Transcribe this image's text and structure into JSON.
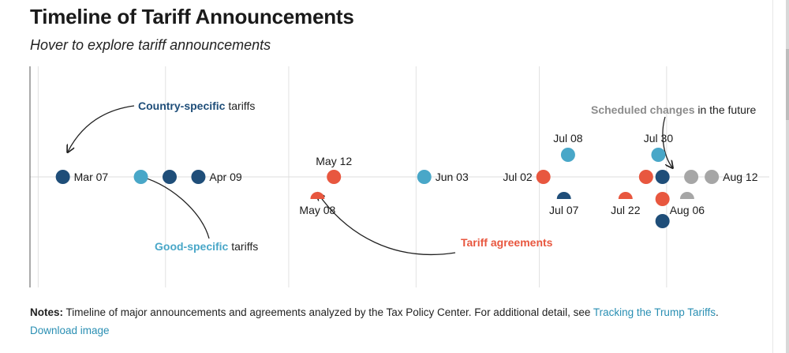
{
  "header": {
    "title": "Timeline of Tariff Announcements",
    "subtitle": "Hover to explore tariff announcements"
  },
  "colors": {
    "country": "#1f4e79",
    "good": "#49a7c8",
    "agreement": "#e8573f",
    "future": "#a6a6a6",
    "axis": "#555555",
    "grid": "#e2e2e2",
    "link": "#2a8fb3"
  },
  "chart_data": {
    "type": "scatter",
    "x_axis": "date",
    "x_range": [
      "2025-02-27",
      "2025-08-26"
    ],
    "gridlines": [
      "2025-03-01",
      "2025-04-01",
      "2025-05-01",
      "2025-06-01",
      "2025-07-01",
      "2025-08-01"
    ],
    "categories": {
      "country": "Country-specific",
      "good": "Good-specific",
      "agreement": "Tariff agreements",
      "future": "Scheduled changes"
    },
    "events": [
      {
        "date": "2025-03-07",
        "category": "country",
        "label": "Mar 07",
        "row": 0,
        "shape": "circle"
      },
      {
        "date": "2025-03-26",
        "category": "good",
        "label": "",
        "row": 0,
        "shape": "circle"
      },
      {
        "date": "2025-04-02",
        "category": "country",
        "label": "",
        "row": 0,
        "shape": "circle"
      },
      {
        "date": "2025-04-09",
        "category": "country",
        "label": "Apr 09",
        "row": 0,
        "shape": "circle"
      },
      {
        "date": "2025-05-08",
        "category": "agreement",
        "label": "May 08",
        "row": 1,
        "shape": "half"
      },
      {
        "date": "2025-05-12",
        "category": "agreement",
        "label": "May 12",
        "row": 0,
        "shape": "circle"
      },
      {
        "date": "2025-06-03",
        "category": "good",
        "label": "Jun 03",
        "row": 0,
        "shape": "circle"
      },
      {
        "date": "2025-07-02",
        "category": "agreement",
        "label": "Jul 02",
        "row": 0,
        "shape": "circle"
      },
      {
        "date": "2025-07-07",
        "category": "country",
        "label": "Jul 07",
        "row": 1,
        "shape": "half"
      },
      {
        "date": "2025-07-08",
        "category": "good",
        "label": "Jul 08",
        "row": -1,
        "shape": "circle"
      },
      {
        "date": "2025-07-22",
        "category": "agreement",
        "label": "Jul 22",
        "row": 1,
        "shape": "half"
      },
      {
        "date": "2025-07-27",
        "category": "agreement",
        "label": "",
        "row": 0,
        "shape": "circle"
      },
      {
        "date": "2025-07-30",
        "category": "good",
        "label": "Jul 30",
        "row": -1,
        "shape": "circle"
      },
      {
        "date": "2025-07-31",
        "category": "country",
        "label": "",
        "row": 0,
        "shape": "circle"
      },
      {
        "date": "2025-07-31",
        "category": "agreement",
        "label": "",
        "row": 1,
        "shape": "circle"
      },
      {
        "date": "2025-07-31",
        "category": "country",
        "label": "",
        "row": 2,
        "shape": "circle"
      },
      {
        "date": "2025-08-06",
        "category": "future",
        "label": "Aug 06",
        "row": 1,
        "shape": "half"
      },
      {
        "date": "2025-08-07",
        "category": "future",
        "label": "",
        "row": 0,
        "shape": "circle"
      },
      {
        "date": "2025-08-12",
        "category": "future",
        "label": "Aug 12",
        "row": 0,
        "shape": "circle"
      }
    ],
    "annotations": {
      "country": {
        "highlight": "Country-specific",
        "rest": " tariffs"
      },
      "good": {
        "highlight": "Good-specific",
        "rest": " tariffs"
      },
      "agreement": {
        "highlight": "Tariff agreements",
        "rest": ""
      },
      "future": {
        "highlight": "Scheduled changes",
        "rest": " in the future"
      }
    }
  },
  "notes": {
    "label": "Notes:",
    "text": " Timeline of major announcements and agreements analyzed by the Tax Policy Center. For additional detail, see ",
    "link": "Tracking the Trump Tariffs",
    "end": "."
  },
  "download": "Download image"
}
